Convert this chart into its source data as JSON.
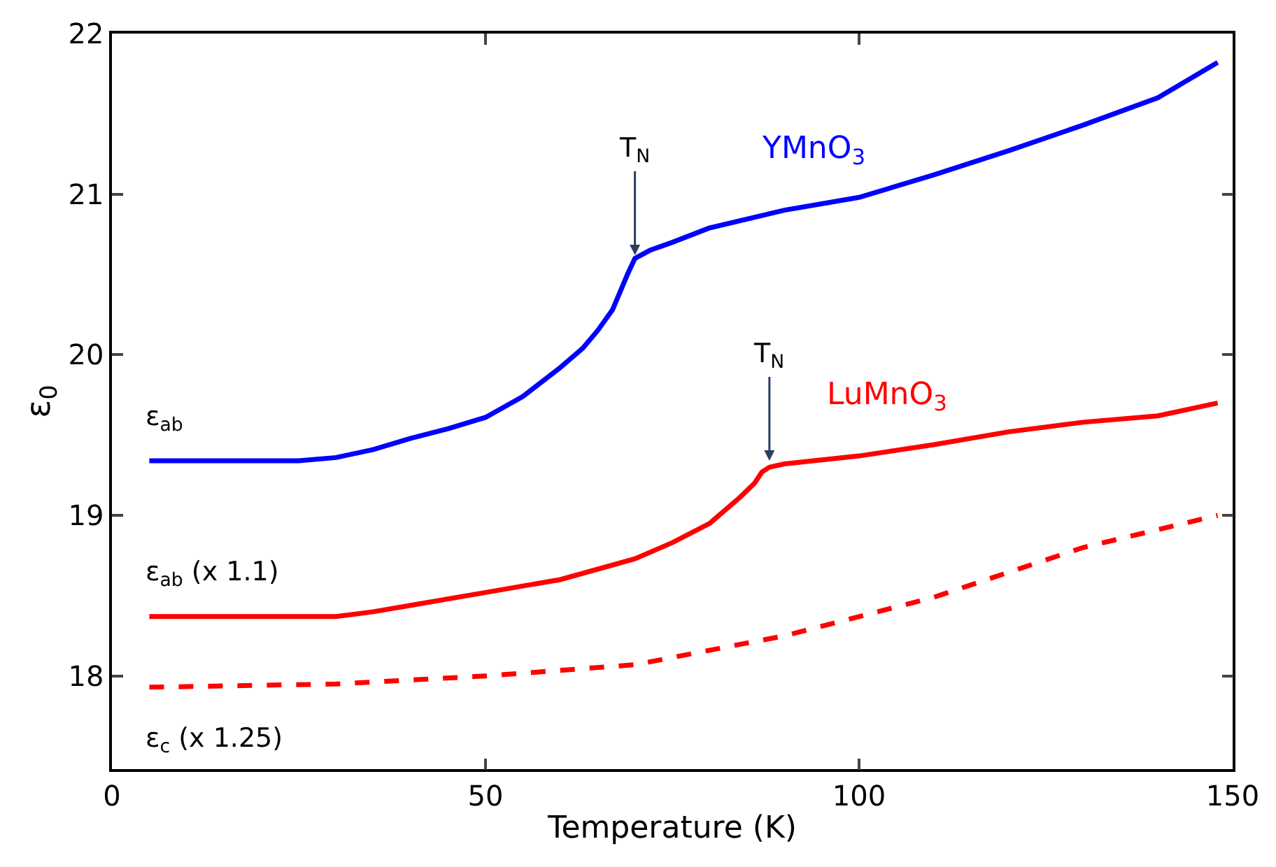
{
  "chart_data": {
    "type": "line",
    "xlabel": "Temperature (K)",
    "ylabel": "ε$_{0}$",
    "xlim": [
      0,
      150
    ],
    "xticks": [
      0,
      50,
      100,
      150
    ],
    "ylim": [
      17.42,
      22
    ],
    "yticks": [
      18,
      19,
      20,
      21,
      22
    ],
    "legend": false,
    "marker": "none",
    "series": [
      {
        "name": "YMnO$_{3}$",
        "color": "#0000ff",
        "line_style": "solid",
        "x": [
          5,
          25,
          30,
          35,
          40,
          45,
          50,
          55,
          60,
          63,
          65,
          67,
          68,
          69,
          70,
          72,
          75,
          80,
          90,
          100,
          110,
          120,
          130,
          140,
          148
        ],
        "values": [
          19.34,
          19.34,
          19.36,
          19.41,
          19.48,
          19.54,
          19.61,
          19.74,
          19.92,
          20.04,
          20.15,
          20.28,
          20.39,
          20.5,
          20.6,
          20.65,
          20.7,
          20.79,
          20.9,
          20.98,
          21.12,
          21.27,
          21.43,
          21.6,
          21.82
        ]
      },
      {
        "name": "LuMnO$_{3}$",
        "color": "#ff0000",
        "line_style": "solid",
        "x": [
          5,
          30,
          35,
          40,
          50,
          60,
          70,
          75,
          80,
          84,
          86,
          87,
          88,
          90,
          100,
          110,
          120,
          130,
          140,
          148
        ],
        "values": [
          18.37,
          18.37,
          18.4,
          18.44,
          18.52,
          18.6,
          18.73,
          18.83,
          18.95,
          19.11,
          19.2,
          19.27,
          19.3,
          19.32,
          19.37,
          19.44,
          19.52,
          19.58,
          19.62,
          19.7
        ]
      },
      {
        "color": "#ff0000",
        "line_style": "dashed",
        "x": [
          5,
          30,
          50,
          70,
          90,
          110,
          130,
          148
        ],
        "values": [
          17.93,
          17.95,
          18.0,
          18.07,
          18.25,
          18.49,
          18.8,
          19.0
        ]
      }
    ],
    "annotations": [
      {
        "text": "T$_{N}$",
        "x": 70,
        "y": 20.62
      },
      {
        "text": "T$_{N}$",
        "x": 88,
        "y": 19.34
      },
      "ε$_{ab}$",
      "ε$_{ab}$ (x 1.1)",
      "ε$_{c}$ (x 1.25)"
    ]
  }
}
